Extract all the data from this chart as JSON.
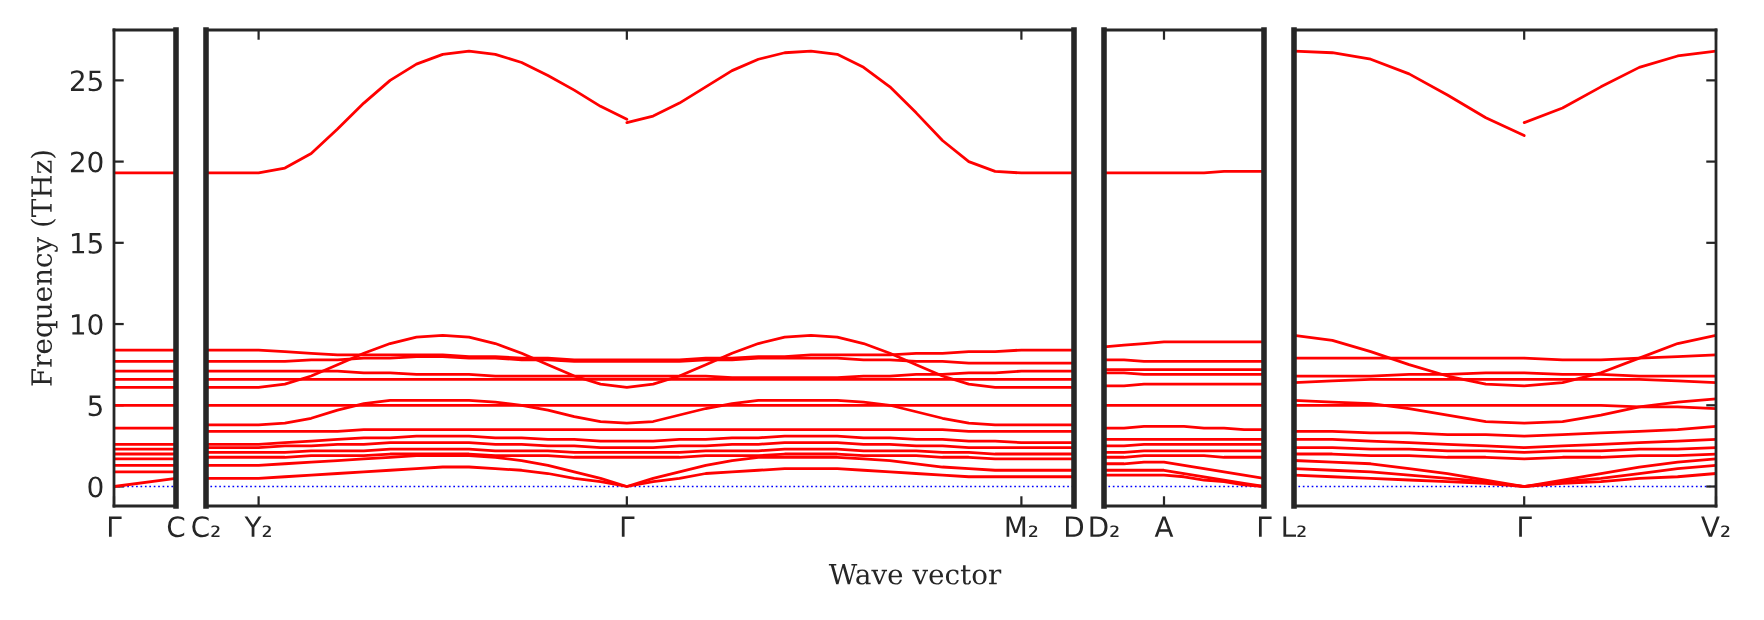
{
  "chart_data": [
    {
      "type": "line",
      "ylabel": "Frequency (THz)",
      "categories": [
        "Γ",
        "C"
      ],
      "ylim": [
        -1.2,
        28.1
      ],
      "yticks": [
        0,
        5,
        10,
        15,
        20,
        25
      ],
      "ref_lines": [
        {
          "axis": "y",
          "value": 0,
          "color": "#0000ff",
          "line_style": "dotted"
        }
      ],
      "series": [
        {
          "color": "#ff0000",
          "values": [
            19.3,
            19.3
          ]
        },
        {
          "color": "#ff0000",
          "values": [
            8.4,
            8.4
          ]
        },
        {
          "color": "#ff0000",
          "values": [
            7.7,
            7.7
          ]
        },
        {
          "color": "#ff0000",
          "values": [
            7.1,
            7.1
          ]
        },
        {
          "color": "#ff0000",
          "values": [
            6.6,
            6.6
          ]
        },
        {
          "color": "#ff0000",
          "values": [
            6.1,
            6.1
          ]
        },
        {
          "color": "#ff0000",
          "values": [
            5.0,
            5.0
          ]
        },
        {
          "color": "#ff0000",
          "values": [
            3.6,
            3.6
          ]
        },
        {
          "color": "#ff0000",
          "values": [
            2.6,
            2.6
          ]
        },
        {
          "color": "#ff0000",
          "values": [
            2.3,
            2.3
          ]
        },
        {
          "color": "#ff0000",
          "values": [
            2.0,
            2.0
          ]
        },
        {
          "color": "#ff0000",
          "values": [
            1.7,
            1.7
          ]
        },
        {
          "color": "#ff0000",
          "values": [
            1.3,
            1.3
          ]
        },
        {
          "color": "#ff0000",
          "values": [
            0.9,
            0.9
          ]
        },
        {
          "color": "#ff0000",
          "values": [
            0.0,
            0.5
          ]
        }
      ]
    },
    {
      "type": "line",
      "xlabel": "Wave vector",
      "categories": [
        "C₂",
        null,
        "Y₂",
        null,
        null,
        null,
        null,
        null,
        null,
        null,
        null,
        null,
        null,
        null,
        null,
        null,
        "Γ",
        null,
        null,
        null,
        null,
        null,
        null,
        null,
        null,
        null,
        null,
        null,
        null,
        null,
        null,
        "M₂",
        null,
        "D"
      ],
      "ylim": [
        -1.2,
        28.1
      ],
      "tick_labels": "x",
      "ref_lines": [
        {
          "axis": "y",
          "value": 0,
          "color": "#0000ff",
          "line_style": "dotted"
        }
      ],
      "series": [
        {
          "color": "#ff0000",
          "values": [
            19.3,
            19.3,
            19.3,
            19.6,
            20.5,
            22.0,
            23.6,
            25.0,
            26.0,
            26.6,
            26.8,
            26.6,
            26.1,
            25.3,
            24.4,
            23.4,
            22.6,
            null,
            null,
            null,
            null,
            null,
            null,
            null,
            null,
            null,
            null,
            null,
            null,
            null,
            null,
            null,
            null,
            null
          ]
        },
        {
          "color": "#ff0000",
          "values": [
            null,
            null,
            null,
            null,
            null,
            null,
            null,
            null,
            null,
            null,
            null,
            null,
            null,
            null,
            null,
            null,
            22.4,
            22.8,
            23.6,
            24.6,
            25.6,
            26.3,
            26.7,
            26.8,
            26.6,
            25.8,
            24.6,
            23.0,
            21.3,
            20.0,
            19.4,
            19.3,
            19.3,
            19.3
          ]
        },
        {
          "color": "#ff0000",
          "values": [
            6.1,
            6.1,
            6.1,
            6.3,
            6.8,
            7.5,
            8.2,
            8.8,
            9.2,
            9.3,
            9.2,
            8.8,
            8.2,
            7.5,
            6.8,
            6.3,
            6.1,
            6.3,
            6.8,
            7.5,
            8.2,
            8.8,
            9.2,
            9.3,
            9.2,
            8.8,
            8.2,
            7.5,
            6.8,
            6.3,
            6.1,
            6.1,
            6.1,
            6.1
          ]
        },
        {
          "color": "#ff0000",
          "values": [
            8.4,
            8.4,
            8.4,
            8.3,
            8.2,
            8.1,
            8.1,
            8.1,
            8.1,
            8.1,
            8.0,
            8.0,
            7.9,
            7.9,
            7.8,
            7.8,
            7.8,
            7.8,
            7.8,
            7.9,
            7.9,
            8.0,
            8.0,
            8.1,
            8.1,
            8.1,
            8.1,
            8.2,
            8.2,
            8.3,
            8.3,
            8.4,
            8.4,
            8.4
          ]
        },
        {
          "color": "#ff0000",
          "values": [
            7.7,
            7.7,
            7.7,
            7.7,
            7.8,
            7.8,
            7.9,
            7.9,
            8.0,
            8.0,
            7.9,
            7.9,
            7.8,
            7.8,
            7.7,
            7.7,
            7.7,
            7.7,
            7.7,
            7.8,
            7.8,
            7.9,
            7.9,
            7.9,
            7.9,
            7.8,
            7.8,
            7.7,
            7.7,
            7.6,
            7.6,
            7.6,
            7.6,
            7.6
          ]
        },
        {
          "color": "#ff0000",
          "values": [
            7.1,
            7.1,
            7.1,
            7.1,
            7.1,
            7.1,
            7.0,
            7.0,
            6.9,
            6.9,
            6.9,
            6.8,
            6.8,
            6.8,
            6.8,
            6.8,
            6.8,
            6.8,
            6.8,
            6.8,
            6.7,
            6.7,
            6.7,
            6.7,
            6.7,
            6.8,
            6.8,
            6.9,
            6.9,
            7.0,
            7.0,
            7.1,
            7.1,
            7.1
          ]
        },
        {
          "color": "#ff0000",
          "values": [
            6.6,
            6.6,
            6.6,
            6.6,
            6.6,
            6.6,
            6.6,
            6.6,
            6.6,
            6.6,
            6.6,
            6.6,
            6.6,
            6.6,
            6.6,
            6.6,
            6.6,
            6.6,
            6.6,
            6.6,
            6.6,
            6.6,
            6.6,
            6.6,
            6.6,
            6.6,
            6.6,
            6.6,
            6.6,
            6.6,
            6.6,
            6.6,
            6.6,
            6.6
          ]
        },
        {
          "color": "#ff0000",
          "values": [
            3.8,
            3.8,
            3.8,
            3.9,
            4.2,
            4.7,
            5.1,
            5.3,
            5.3,
            5.3,
            5.3,
            5.2,
            5.0,
            4.7,
            4.3,
            4.0,
            3.9,
            4.0,
            4.4,
            4.8,
            5.1,
            5.3,
            5.3,
            5.3,
            5.3,
            5.2,
            5.0,
            4.6,
            4.2,
            3.9,
            3.8,
            3.8,
            3.8,
            3.8
          ]
        },
        {
          "color": "#ff0000",
          "values": [
            5.0,
            5.0,
            5.0,
            5.0,
            5.0,
            5.0,
            5.0,
            5.0,
            5.0,
            5.0,
            5.0,
            5.0,
            5.0,
            5.0,
            5.0,
            5.0,
            5.0,
            5.0,
            5.0,
            5.0,
            5.0,
            5.0,
            5.0,
            5.0,
            5.0,
            5.0,
            5.0,
            5.0,
            5.0,
            5.0,
            5.0,
            5.0,
            5.0,
            5.0
          ]
        },
        {
          "color": "#ff0000",
          "values": [
            3.4,
            3.4,
            3.4,
            3.4,
            3.4,
            3.4,
            3.5,
            3.5,
            3.5,
            3.5,
            3.5,
            3.5,
            3.5,
            3.5,
            3.5,
            3.5,
            3.5,
            3.5,
            3.5,
            3.5,
            3.5,
            3.5,
            3.5,
            3.5,
            3.5,
            3.5,
            3.5,
            3.5,
            3.5,
            3.4,
            3.4,
            3.4,
            3.4,
            3.4
          ]
        },
        {
          "color": "#ff0000",
          "values": [
            2.6,
            2.6,
            2.6,
            2.7,
            2.8,
            2.9,
            3.0,
            3.0,
            3.1,
            3.1,
            3.1,
            3.0,
            3.0,
            2.9,
            2.9,
            2.8,
            2.8,
            2.8,
            2.9,
            2.9,
            3.0,
            3.0,
            3.1,
            3.1,
            3.1,
            3.0,
            3.0,
            2.9,
            2.9,
            2.8,
            2.8,
            2.7,
            2.7,
            2.7
          ]
        },
        {
          "color": "#ff0000",
          "values": [
            2.4,
            2.4,
            2.4,
            2.5,
            2.5,
            2.6,
            2.6,
            2.7,
            2.7,
            2.7,
            2.7,
            2.6,
            2.6,
            2.5,
            2.5,
            2.4,
            2.4,
            2.4,
            2.5,
            2.5,
            2.6,
            2.6,
            2.7,
            2.7,
            2.7,
            2.6,
            2.6,
            2.5,
            2.5,
            2.4,
            2.4,
            2.4,
            2.4,
            2.4
          ]
        },
        {
          "color": "#ff0000",
          "values": [
            2.1,
            2.1,
            2.1,
            2.1,
            2.2,
            2.2,
            2.2,
            2.3,
            2.3,
            2.3,
            2.3,
            2.2,
            2.2,
            2.2,
            2.1,
            2.1,
            2.1,
            2.1,
            2.1,
            2.2,
            2.2,
            2.2,
            2.3,
            2.3,
            2.3,
            2.2,
            2.2,
            2.2,
            2.1,
            2.1,
            2.0,
            2.0,
            2.0,
            2.0
          ]
        },
        {
          "color": "#ff0000",
          "values": [
            1.8,
            1.8,
            1.8,
            1.8,
            1.9,
            1.9,
            1.9,
            2.0,
            2.0,
            2.0,
            2.0,
            1.9,
            1.9,
            1.9,
            1.8,
            1.8,
            1.8,
            1.8,
            1.8,
            1.9,
            1.9,
            1.9,
            2.0,
            2.0,
            2.0,
            1.9,
            1.9,
            1.9,
            1.8,
            1.8,
            1.7,
            1.7,
            1.7,
            1.7
          ]
        },
        {
          "color": "#ff0000",
          "values": [
            1.3,
            1.3,
            1.3,
            1.4,
            1.5,
            1.6,
            1.7,
            1.8,
            1.9,
            1.9,
            1.9,
            1.8,
            1.6,
            1.3,
            0.9,
            0.5,
            0.0,
            0.5,
            0.9,
            1.3,
            1.6,
            1.8,
            1.8,
            1.8,
            1.8,
            1.7,
            1.6,
            1.4,
            1.2,
            1.1,
            1.0,
            1.0,
            1.0,
            1.0
          ]
        },
        {
          "color": "#ff0000",
          "values": [
            0.5,
            0.5,
            0.5,
            0.6,
            0.7,
            0.8,
            0.9,
            1.0,
            1.1,
            1.2,
            1.2,
            1.1,
            1.0,
            0.8,
            0.5,
            0.3,
            0.0,
            0.3,
            0.5,
            0.8,
            0.9,
            1.0,
            1.1,
            1.1,
            1.1,
            1.0,
            0.9,
            0.8,
            0.7,
            0.6,
            0.6,
            0.6,
            0.6,
            0.6
          ]
        }
      ]
    },
    {
      "type": "line",
      "categories": [
        "D₂",
        null,
        null,
        "A",
        null,
        null,
        null,
        null,
        "Γ"
      ],
      "ylim": [
        -1.2,
        28.1
      ],
      "tick_labels": "x",
      "ref_lines": [
        {
          "axis": "y",
          "value": 0,
          "color": "#0000ff",
          "line_style": "dotted"
        }
      ],
      "series": [
        {
          "color": "#ff0000",
          "values": [
            19.3,
            19.3,
            19.3,
            19.3,
            19.3,
            19.3,
            19.4,
            19.4,
            19.4
          ]
        },
        {
          "color": "#ff0000",
          "values": [
            8.6,
            8.7,
            8.8,
            8.9,
            8.9,
            8.9,
            8.9,
            8.9,
            8.9
          ]
        },
        {
          "color": "#ff0000",
          "values": [
            7.8,
            7.8,
            7.7,
            7.7,
            7.7,
            7.7,
            7.7,
            7.7,
            7.7
          ]
        },
        {
          "color": "#ff0000",
          "values": [
            7.2,
            7.2,
            7.2,
            7.2,
            7.2,
            7.2,
            7.2,
            7.2,
            7.2
          ]
        },
        {
          "color": "#ff0000",
          "values": [
            7.0,
            7.0,
            6.9,
            6.9,
            6.9,
            6.9,
            6.9,
            6.9,
            6.9
          ]
        },
        {
          "color": "#ff0000",
          "values": [
            6.2,
            6.2,
            6.3,
            6.3,
            6.3,
            6.3,
            6.3,
            6.3,
            6.3
          ]
        },
        {
          "color": "#ff0000",
          "values": [
            5.0,
            5.0,
            5.0,
            5.0,
            5.0,
            5.0,
            5.0,
            5.0,
            5.0
          ]
        },
        {
          "color": "#ff0000",
          "values": [
            3.6,
            3.6,
            3.7,
            3.7,
            3.7,
            3.6,
            3.6,
            3.5,
            3.5
          ]
        },
        {
          "color": "#ff0000",
          "values": [
            2.9,
            2.9,
            2.9,
            2.9,
            2.9,
            2.9,
            2.9,
            2.9,
            2.9
          ]
        },
        {
          "color": "#ff0000",
          "values": [
            2.5,
            2.5,
            2.6,
            2.6,
            2.6,
            2.6,
            2.6,
            2.6,
            2.6
          ]
        },
        {
          "color": "#ff0000",
          "values": [
            2.1,
            2.1,
            2.2,
            2.2,
            2.2,
            2.2,
            2.2,
            2.2,
            2.2
          ]
        },
        {
          "color": "#ff0000",
          "values": [
            1.8,
            1.8,
            1.9,
            1.9,
            1.9,
            1.9,
            1.8,
            1.8,
            1.8
          ]
        },
        {
          "color": "#ff0000",
          "values": [
            1.4,
            1.4,
            1.5,
            1.5,
            1.3,
            1.1,
            0.9,
            0.7,
            0.5
          ]
        },
        {
          "color": "#ff0000",
          "values": [
            1.0,
            1.0,
            1.0,
            1.0,
            0.8,
            0.6,
            0.4,
            0.2,
            0.0
          ]
        },
        {
          "color": "#ff0000",
          "values": [
            0.7,
            0.7,
            0.7,
            0.7,
            0.6,
            0.4,
            0.3,
            0.1,
            0.0
          ]
        }
      ]
    },
    {
      "type": "line",
      "categories": [
        "L₂",
        null,
        null,
        null,
        null,
        null,
        "Γ",
        null,
        null,
        null,
        null,
        "V₂"
      ],
      "ylim": [
        -1.2,
        28.1
      ],
      "tick_labels": "x",
      "yticks": [
        0,
        5,
        10,
        15,
        20,
        25
      ],
      "ref_lines": [
        {
          "axis": "y",
          "value": 0,
          "color": "#0000ff",
          "line_style": "dotted"
        }
      ],
      "series": [
        {
          "color": "#ff0000",
          "values": [
            26.8,
            26.7,
            26.3,
            25.4,
            24.1,
            22.7,
            21.6,
            null,
            null,
            null,
            null,
            null
          ]
        },
        {
          "color": "#ff0000",
          "values": [
            null,
            null,
            null,
            null,
            null,
            null,
            22.4,
            23.3,
            24.6,
            25.8,
            26.5,
            26.8
          ]
        },
        {
          "color": "#ff0000",
          "values": [
            9.3,
            9.0,
            8.3,
            7.5,
            6.8,
            6.3,
            6.2,
            6.4,
            7.0,
            7.9,
            8.8,
            9.3
          ]
        },
        {
          "color": "#ff0000",
          "values": [
            7.9,
            7.9,
            7.9,
            7.9,
            7.9,
            7.9,
            7.9,
            7.8,
            7.8,
            7.9,
            8.0,
            8.1
          ]
        },
        {
          "color": "#ff0000",
          "values": [
            6.4,
            6.5,
            6.6,
            6.6,
            6.6,
            6.6,
            6.6,
            6.6,
            6.6,
            6.6,
            6.5,
            6.4
          ]
        },
        {
          "color": "#ff0000",
          "values": [
            6.8,
            6.8,
            6.8,
            6.9,
            6.9,
            7.0,
            7.0,
            6.9,
            6.9,
            6.8,
            6.8,
            6.8
          ]
        },
        {
          "color": "#ff0000",
          "values": [
            5.3,
            5.2,
            5.1,
            4.8,
            4.4,
            4.0,
            3.9,
            4.0,
            4.4,
            4.9,
            5.2,
            5.4
          ]
        },
        {
          "color": "#ff0000",
          "values": [
            5.0,
            5.0,
            5.0,
            5.0,
            5.0,
            5.0,
            5.0,
            5.0,
            5.0,
            4.9,
            4.9,
            4.8
          ]
        },
        {
          "color": "#ff0000",
          "values": [
            3.4,
            3.4,
            3.3,
            3.3,
            3.2,
            3.2,
            3.1,
            3.2,
            3.3,
            3.4,
            3.5,
            3.7
          ]
        },
        {
          "color": "#ff0000",
          "values": [
            2.9,
            2.9,
            2.8,
            2.7,
            2.6,
            2.5,
            2.4,
            2.5,
            2.6,
            2.7,
            2.8,
            2.9
          ]
        },
        {
          "color": "#ff0000",
          "values": [
            2.4,
            2.4,
            2.3,
            2.3,
            2.2,
            2.2,
            2.1,
            2.2,
            2.2,
            2.3,
            2.3,
            2.4
          ]
        },
        {
          "color": "#ff0000",
          "values": [
            2.0,
            2.0,
            1.9,
            1.9,
            1.8,
            1.8,
            1.7,
            1.8,
            1.8,
            1.9,
            1.9,
            2.0
          ]
        },
        {
          "color": "#ff0000",
          "values": [
            1.6,
            1.5,
            1.4,
            1.1,
            0.8,
            0.4,
            0.0,
            0.4,
            0.8,
            1.2,
            1.5,
            1.7
          ]
        },
        {
          "color": "#ff0000",
          "values": [
            1.1,
            1.0,
            0.9,
            0.7,
            0.5,
            0.3,
            0.0,
            0.3,
            0.5,
            0.8,
            1.1,
            1.3
          ]
        },
        {
          "color": "#ff0000",
          "values": [
            0.7,
            0.6,
            0.5,
            0.4,
            0.3,
            0.2,
            0.0,
            0.2,
            0.3,
            0.5,
            0.6,
            0.8
          ]
        }
      ]
    }
  ]
}
